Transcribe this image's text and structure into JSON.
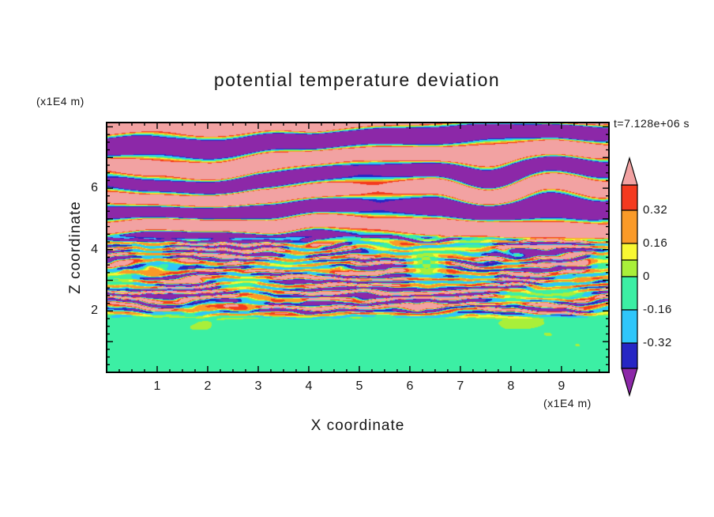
{
  "figure": {
    "title": "potential temperature deviation",
    "time_label": "t=7.128e+06 s"
  },
  "x_axis": {
    "label": "X coordinate",
    "unit_label": "(x1E4 m)",
    "ticks": [
      1,
      2,
      3,
      4,
      5,
      6,
      7,
      8,
      9
    ],
    "minor_step": 0.25,
    "range": [
      0,
      9.94
    ]
  },
  "z_axis": {
    "label": "Z coordinate",
    "unit_label": "(x1E4 m)",
    "ticks": [
      2,
      4,
      6
    ],
    "minor_step": 0.25,
    "range": [
      0,
      8.14
    ]
  },
  "colorbar": {
    "tick_labels": [
      {
        "text": "0.32",
        "value": 0.32
      },
      {
        "text": "0.16",
        "value": 0.16
      },
      {
        "text": "0",
        "value": 0
      },
      {
        "text": "-0.16",
        "value": -0.16
      },
      {
        "text": "-0.32",
        "value": -0.32
      }
    ]
  },
  "chart_data": {
    "type": "heatmap",
    "title": "potential temperature deviation",
    "xlabel": "X coordinate (x1E4 m)",
    "ylabel": "Z coordinate (x1E4 m)",
    "time_annotation": "t=7.128e+06 s",
    "x_range": [
      0,
      9.94
    ],
    "z_range": [
      0,
      8.14
    ],
    "colorbar_tick_values": [
      0.32,
      0.16,
      0,
      -0.16,
      -0.32
    ],
    "contour_levels": [
      -0.4,
      -0.32,
      -0.16,
      0,
      0.08,
      0.16,
      0.32,
      0.4
    ],
    "palette": [
      {
        "name": "pink",
        "color": "#f2a2a2",
        "range": [
          0.4,
          null
        ]
      },
      {
        "name": "red",
        "color": "#f43a1f",
        "range": [
          0.32,
          0.4
        ]
      },
      {
        "name": "orange",
        "color": "#fa9a28",
        "range": [
          0.16,
          0.32
        ]
      },
      {
        "name": "yellow",
        "color": "#f8f832",
        "range": [
          0.08,
          0.16
        ]
      },
      {
        "name": "yellow-green",
        "color": "#a9ef3a",
        "range": [
          0,
          0.08
        ]
      },
      {
        "name": "spring-green",
        "color": "#3cefa4",
        "range": [
          -0.16,
          0
        ]
      },
      {
        "name": "cyan",
        "color": "#2fc6fa",
        "range": [
          -0.32,
          -0.16
        ]
      },
      {
        "name": "navy",
        "color": "#2626c4",
        "range": [
          -0.4,
          -0.32
        ]
      },
      {
        "name": "purple",
        "color": "#8c28a8",
        "range": [
          null,
          -0.4
        ]
      }
    ],
    "field_structure": {
      "lower_mixed_layer": {
        "z_range": [
          0,
          1.85
        ],
        "description": "near-zero deviation: spring-green background with yellow-green blobs"
      },
      "layered_turbulence_zone": {
        "z_range": [
          1.85,
          4.35
        ],
        "description": "thin alternating positive (red/orange/yellow) and negative (navy/cyan) streaks over pink/purple bands"
      },
      "gravity_wave_zone": {
        "z_range": [
          4.35,
          8.14
        ],
        "description": "broad undulating horizontal bands alternating pink (>0.4) and purple (<-0.4) with thin rainbow contour edges"
      }
    }
  }
}
